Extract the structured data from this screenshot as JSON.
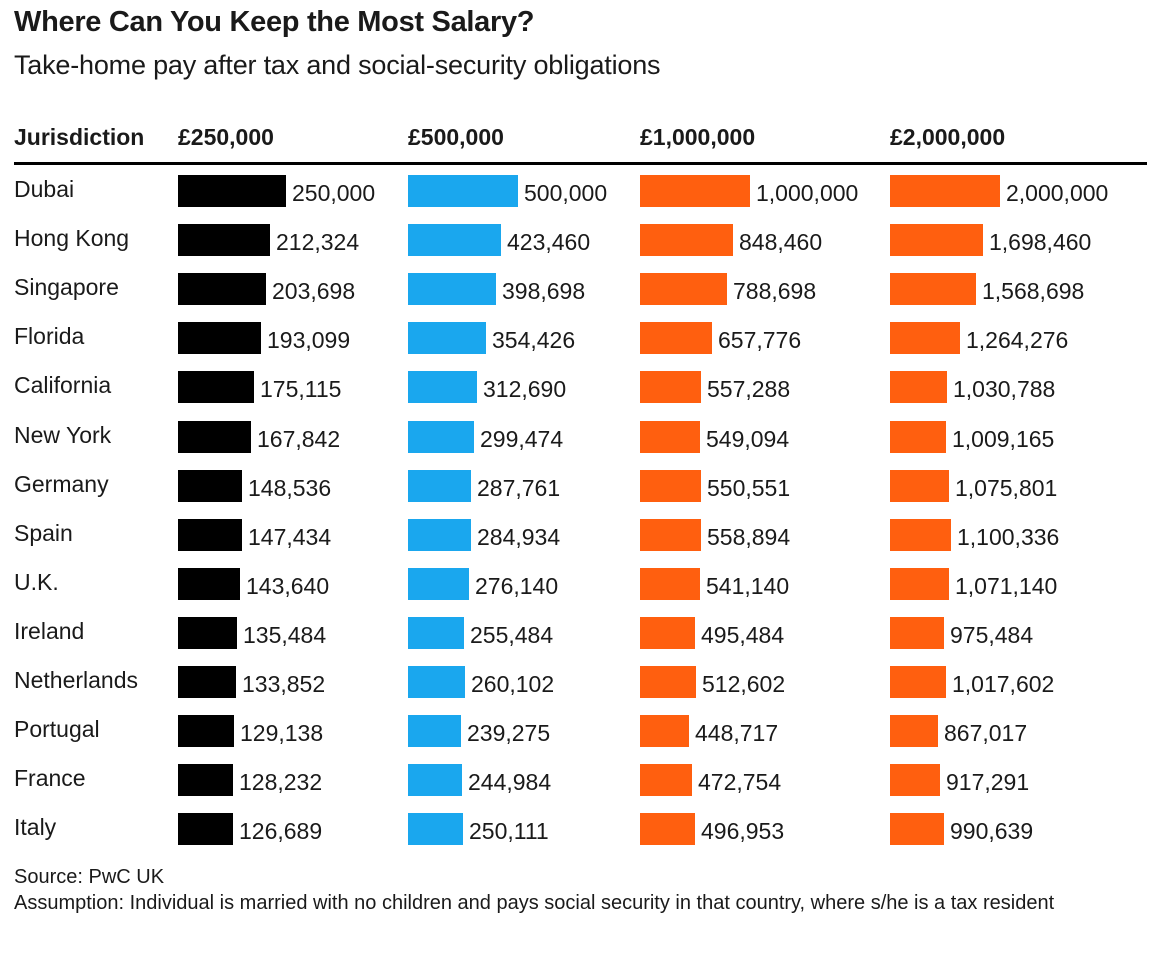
{
  "chart_data": {
    "type": "bar",
    "title": "Where Can You Keep the Most Salary?",
    "subtitle": "Take-home pay after tax and social-security obligations",
    "row_header": "Jurisdiction",
    "categories": [
      "Dubai",
      "Hong Kong",
      "Singapore",
      "Florida",
      "California",
      "New York",
      "Germany",
      "Spain",
      "U.K.",
      "Ireland",
      "Netherlands",
      "Portugal",
      "France",
      "Italy"
    ],
    "series": [
      {
        "name": "£250,000",
        "max": 250000,
        "color": "#000000",
        "values": [
          250000,
          212324,
          203698,
          193099,
          175115,
          167842,
          148536,
          147434,
          143640,
          135484,
          133852,
          129138,
          128232,
          126689
        ],
        "labels": [
          "250,000",
          "212,324",
          "203,698",
          "193,099",
          "175,115",
          "167,842",
          "148,536",
          "147,434",
          "143,640",
          "135,484",
          "133,852",
          "129,138",
          "128,232",
          "126,689"
        ]
      },
      {
        "name": "£500,000",
        "max": 500000,
        "color": "#1aa7ee",
        "values": [
          500000,
          423460,
          398698,
          354426,
          312690,
          299474,
          287761,
          284934,
          276140,
          255484,
          260102,
          239275,
          244984,
          250111
        ],
        "labels": [
          "500,000",
          "423,460",
          "398,698",
          "354,426",
          "312,690",
          "299,474",
          "287,761",
          "284,934",
          "276,140",
          "255,484",
          "260,102",
          "239,275",
          "244,984",
          "250,111"
        ]
      },
      {
        "name": "£1,000,000",
        "max": 1000000,
        "color": "#ff5f0f",
        "values": [
          1000000,
          848460,
          788698,
          657776,
          557288,
          549094,
          550551,
          558894,
          541140,
          495484,
          512602,
          448717,
          472754,
          496953
        ],
        "labels": [
          "1,000,000",
          "848,460",
          "788,698",
          "657,776",
          "557,288",
          "549,094",
          "550,551",
          "558,894",
          "541,140",
          "495,484",
          "512,602",
          "448,717",
          "472,754",
          "496,953"
        ]
      },
      {
        "name": "£2,000,000",
        "max": 2000000,
        "color": "#ff5f0f",
        "values": [
          2000000,
          1698460,
          1568698,
          1264276,
          1030788,
          1009165,
          1075801,
          1100336,
          1071140,
          975484,
          1017602,
          867017,
          917291,
          990639
        ],
        "labels": [
          "2,000,000",
          "1,698,460",
          "1,568,698",
          "1,264,276",
          "1,030,788",
          "1,009,165",
          "1,075,801",
          "1,100,336",
          "1,071,140",
          "975,484",
          "1,017,602",
          "867,017",
          "917,291",
          "990,639"
        ]
      }
    ]
  },
  "footer": {
    "source": "Source: PwC UK",
    "assumption": "Assumption: Individual is married with no children and pays social security in that country, where s/he is a tax resident"
  }
}
